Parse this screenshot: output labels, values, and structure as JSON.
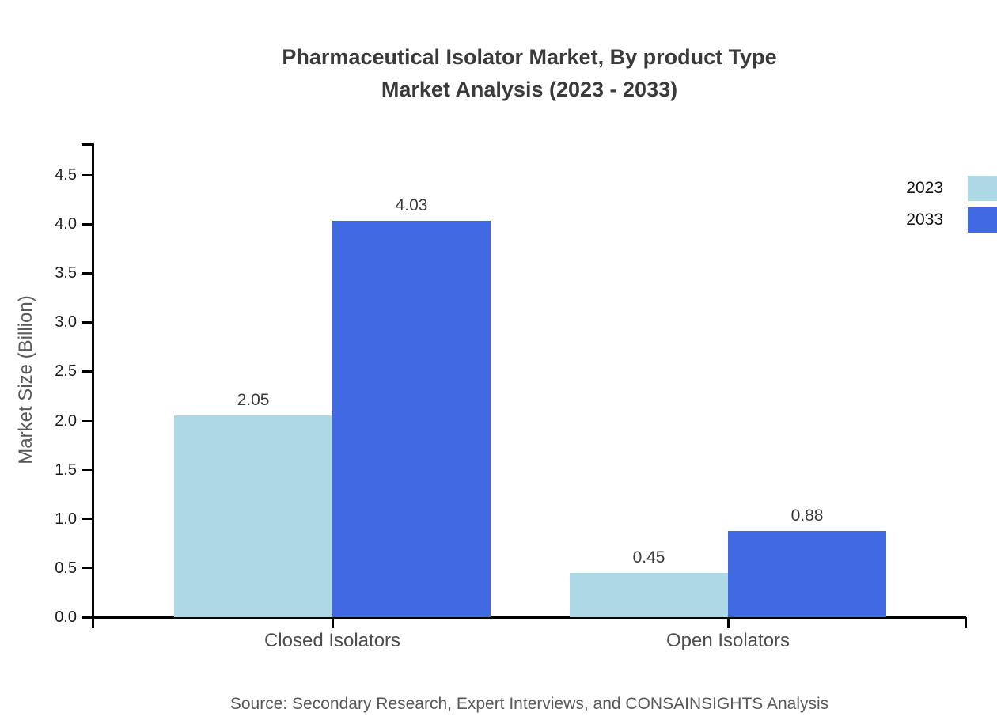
{
  "chart": {
    "title_line1": "Pharmaceutical Isolator Market, By product Type",
    "title_line2": "Market Analysis (2023 - 2033)"
  },
  "chart_data": {
    "type": "bar",
    "title": "Pharmaceutical Isolator Market, By product Type Market Analysis (2023 - 2033)",
    "categories": [
      "Closed Isolators",
      "Open Isolators"
    ],
    "series": [
      {
        "name": "2023",
        "color": "#ADD8E6",
        "values": [
          2.05,
          0.45
        ]
      },
      {
        "name": "2033",
        "color": "#4169E1",
        "values": [
          4.03,
          0.88
        ]
      }
    ],
    "xlabel": "",
    "ylabel": "Market Size (Billion)",
    "ylim": [
      0,
      4.5
    ],
    "yticks": [
      "0.0",
      "0.5",
      "1.0",
      "1.5",
      "2.0",
      "2.5",
      "3.0",
      "3.5",
      "4.0",
      "4.5"
    ],
    "grid": false,
    "legend_position": "upper right",
    "value_label_format": "2dp",
    "source": "Source: Secondary Research, Expert Interviews, and CONSAINSIGHTS Analysis"
  }
}
